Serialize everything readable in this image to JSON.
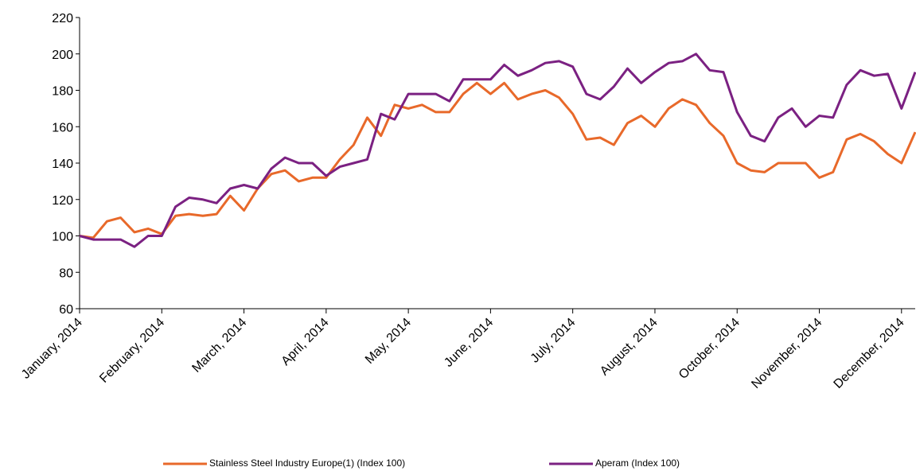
{
  "chart_data": {
    "type": "line",
    "categories": [
      "January, 2014",
      null,
      null,
      null,
      null,
      null,
      "February, 2014",
      null,
      null,
      null,
      null,
      null,
      "March, 2014",
      null,
      null,
      null,
      null,
      null,
      "April, 2014",
      null,
      null,
      null,
      null,
      null,
      "May, 2014",
      null,
      null,
      null,
      null,
      null,
      "June, 2014",
      null,
      null,
      null,
      null,
      null,
      "July, 2014",
      null,
      null,
      null,
      null,
      null,
      "August, 2014",
      null,
      null,
      null,
      null,
      null,
      "October, 2014",
      null,
      null,
      null,
      null,
      null,
      "November, 2014",
      null,
      null,
      null,
      null,
      null,
      "December, 2014",
      null
    ],
    "series": [
      {
        "name": "Stainless Steel Industry Europe(1) (Index 100)",
        "color": "#e8692a",
        "values": [
          100,
          99,
          108,
          110,
          102,
          104,
          101,
          111,
          112,
          111,
          112,
          122,
          114,
          126,
          134,
          136,
          130,
          132,
          132,
          142,
          150,
          165,
          155,
          172,
          170,
          172,
          168,
          168,
          178,
          184,
          178,
          184,
          175,
          178,
          180,
          176,
          167,
          153,
          154,
          150,
          162,
          166,
          160,
          170,
          175,
          172,
          162,
          155,
          140,
          136,
          135,
          140,
          140,
          140,
          132,
          135,
          153,
          156,
          152,
          145,
          140,
          157
        ]
      },
      {
        "name": "Aperam (Index 100)",
        "color": "#7b2182",
        "values": [
          100,
          98,
          98,
          98,
          94,
          100,
          100,
          116,
          121,
          120,
          118,
          126,
          128,
          126,
          137,
          143,
          140,
          140,
          133,
          138,
          140,
          142,
          167,
          164,
          178,
          178,
          178,
          174,
          186,
          186,
          186,
          194,
          188,
          191,
          195,
          196,
          193,
          178,
          175,
          182,
          192,
          184,
          190,
          195,
          196,
          200,
          191,
          190,
          168,
          155,
          152,
          165,
          170,
          160,
          166,
          165,
          183,
          191,
          188,
          189,
          170,
          190
        ]
      }
    ],
    "ylim": [
      60,
      220
    ],
    "yticks": [
      60,
      80,
      100,
      120,
      140,
      160,
      180,
      200,
      220
    ],
    "grid": false,
    "legend": "bottom"
  }
}
